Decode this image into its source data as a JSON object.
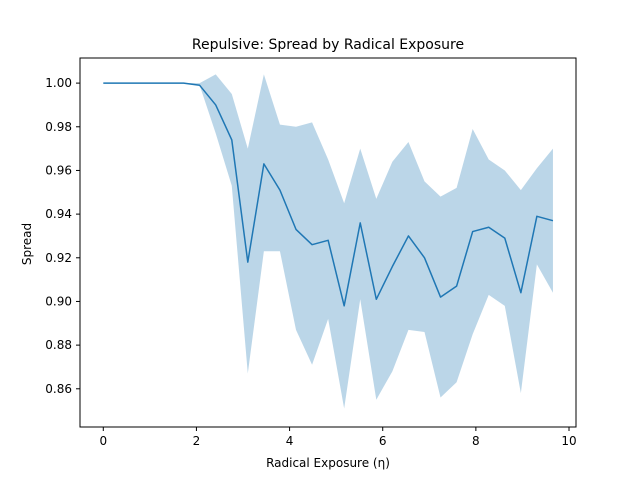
{
  "chart_data": {
    "type": "line",
    "title": "Repulsive: Spread by Radical Exposure",
    "xlabel": "Radical Exposure (η)",
    "ylabel": "Spread",
    "xlim": [
      -0.5,
      10.15
    ],
    "ylim": [
      0.8425,
      1.0115
    ],
    "xticks": [
      0,
      2,
      4,
      6,
      8,
      10
    ],
    "xtick_labels": [
      "0",
      "2",
      "4",
      "6",
      "8",
      "10"
    ],
    "yticks": [
      0.86,
      0.88,
      0.9,
      0.92,
      0.94,
      0.96,
      0.98,
      1.0
    ],
    "ytick_labels": [
      "0.86",
      "0.88",
      "0.90",
      "0.92",
      "0.94",
      "0.96",
      "0.98",
      "1.00"
    ],
    "grid": false,
    "colors": {
      "line": "#1f77b4",
      "band": "#1f77b4"
    },
    "series": [
      {
        "x": [
          0.0,
          0.345,
          0.69,
          1.034,
          1.379,
          1.724,
          2.069,
          2.414,
          2.759,
          3.103,
          3.448,
          3.793,
          4.138,
          4.483,
          4.828,
          5.172,
          5.517,
          5.862,
          6.207,
          6.552,
          6.897,
          7.241,
          7.586,
          7.931,
          8.276,
          8.621,
          8.966,
          9.31,
          9.655
        ],
        "y": [
          1.0,
          1.0,
          1.0,
          1.0,
          1.0,
          1.0,
          0.999,
          0.99,
          0.974,
          0.918,
          0.963,
          0.951,
          0.933,
          0.926,
          0.928,
          0.898,
          0.936,
          0.901,
          0.916,
          0.93,
          0.92,
          0.902,
          0.907,
          0.932,
          0.934,
          0.929,
          0.904,
          0.939,
          0.937
        ],
        "y_lower": [
          1.0,
          1.0,
          1.0,
          1.0,
          1.0,
          1.0,
          0.999,
          0.977,
          0.953,
          0.867,
          0.923,
          0.923,
          0.887,
          0.871,
          0.892,
          0.851,
          0.901,
          0.855,
          0.868,
          0.887,
          0.886,
          0.856,
          0.863,
          0.885,
          0.903,
          0.898,
          0.858,
          0.917,
          0.904
        ],
        "y_upper": [
          1.0,
          1.0,
          1.0,
          1.0,
          1.0,
          1.0,
          1.0,
          1.004,
          0.995,
          0.97,
          1.004,
          0.981,
          0.98,
          0.982,
          0.965,
          0.945,
          0.97,
          0.947,
          0.964,
          0.973,
          0.955,
          0.948,
          0.952,
          0.979,
          0.965,
          0.96,
          0.951,
          0.961,
          0.97
        ]
      }
    ]
  }
}
